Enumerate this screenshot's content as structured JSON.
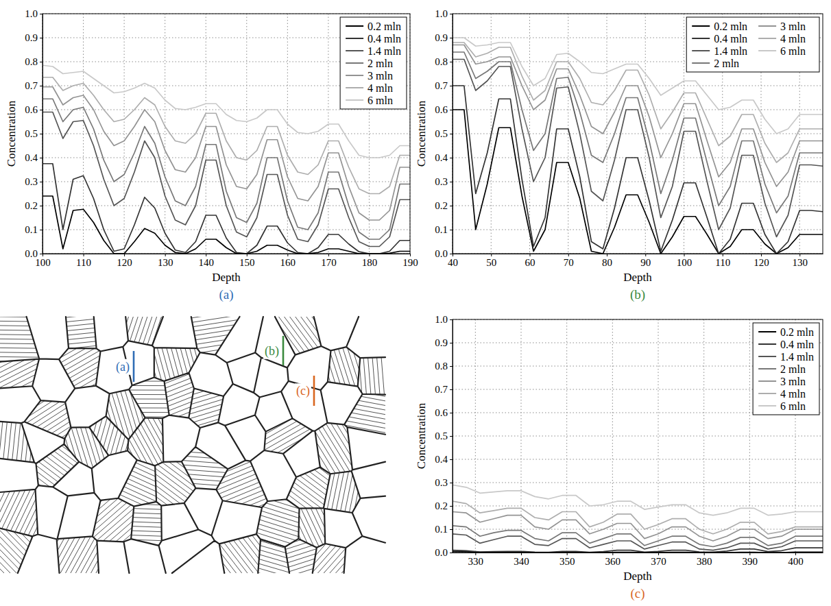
{
  "chart_data": [
    {
      "type": "line",
      "caption": "(a)",
      "x_label": "Depth",
      "y_label": "Concentration",
      "x": [
        100,
        102.5,
        105,
        107.5,
        110,
        112.5,
        115,
        117.5,
        120,
        122.5,
        125,
        127.5,
        130,
        132.5,
        135,
        137.5,
        140,
        142.5,
        145,
        147.5,
        150,
        152.5,
        155,
        157.5,
        160,
        162.5,
        165,
        167.5,
        170,
        172.5,
        175,
        177.5,
        180,
        182.5,
        185,
        187.5,
        190
      ],
      "xlim": [
        100,
        190
      ],
      "xticks": [
        100,
        110,
        120,
        130,
        140,
        150,
        160,
        170,
        180,
        190
      ],
      "ylim": [
        0,
        1
      ],
      "yticks": [
        {
          "value": 0,
          "label": "0.0"
        },
        0.1,
        0.2,
        0.3,
        0.4,
        0.5,
        0.6,
        0.7,
        0.8,
        0.9,
        {
          "value": 1,
          "label": "1.0"
        }
      ],
      "grid": true,
      "legend": "upper right",
      "series": [
        {
          "name": "0.2 mln",
          "color": "#000000",
          "values": [
            0.24,
            0.24,
            0.02,
            0.18,
            0.185,
            0.13,
            0.055,
            0,
            0,
            0.05,
            0.105,
            0.085,
            0.035,
            0.005,
            0,
            0.02,
            0.06,
            0.06,
            0.025,
            0,
            0,
            0.01,
            0.035,
            0.035,
            0.015,
            0,
            0,
            0.005,
            0.02,
            0.02,
            0.01,
            0,
            0,
            0,
            0.002,
            0.01,
            0.01
          ]
        },
        {
          "name": "0.4 mln",
          "color": "#333333",
          "values": [
            0.375,
            0.375,
            0.1,
            0.31,
            0.325,
            0.23,
            0.1,
            0.01,
            0.02,
            0.12,
            0.235,
            0.19,
            0.085,
            0.015,
            0.005,
            0.05,
            0.16,
            0.16,
            0.065,
            0.005,
            0,
            0.035,
            0.115,
            0.115,
            0.045,
            0.005,
            0,
            0.025,
            0.08,
            0.08,
            0.04,
            0.008,
            0,
            0,
            0.01,
            0.055,
            0.055
          ]
        },
        {
          "name": "1.4 mln",
          "color": "#555555",
          "values": [
            0.59,
            0.59,
            0.48,
            0.55,
            0.555,
            0.45,
            0.31,
            0.2,
            0.23,
            0.34,
            0.47,
            0.4,
            0.24,
            0.14,
            0.12,
            0.2,
            0.39,
            0.39,
            0.2,
            0.09,
            0.07,
            0.15,
            0.33,
            0.33,
            0.16,
            0.06,
            0.05,
            0.12,
            0.27,
            0.27,
            0.15,
            0.05,
            0.03,
            0.03,
            0.07,
            0.225,
            0.225
          ]
        },
        {
          "name": "2 mln",
          "color": "#777777",
          "values": [
            0.645,
            0.645,
            0.55,
            0.6,
            0.61,
            0.52,
            0.39,
            0.3,
            0.33,
            0.42,
            0.53,
            0.46,
            0.32,
            0.22,
            0.2,
            0.28,
            0.455,
            0.455,
            0.26,
            0.15,
            0.13,
            0.21,
            0.4,
            0.4,
            0.22,
            0.11,
            0.1,
            0.17,
            0.34,
            0.34,
            0.2,
            0.09,
            0.06,
            0.06,
            0.1,
            0.29,
            0.29
          ]
        },
        {
          "name": "3 mln",
          "color": "#939393",
          "values": [
            0.695,
            0.695,
            0.62,
            0.65,
            0.66,
            0.6,
            0.51,
            0.45,
            0.47,
            0.53,
            0.6,
            0.55,
            0.43,
            0.35,
            0.34,
            0.4,
            0.53,
            0.53,
            0.37,
            0.28,
            0.27,
            0.33,
            0.475,
            0.475,
            0.32,
            0.23,
            0.22,
            0.28,
            0.42,
            0.42,
            0.28,
            0.17,
            0.14,
            0.14,
            0.18,
            0.36,
            0.36
          ]
        },
        {
          "name": "4 mln",
          "color": "#adadad",
          "values": [
            0.735,
            0.735,
            0.68,
            0.7,
            0.71,
            0.66,
            0.6,
            0.55,
            0.56,
            0.6,
            0.65,
            0.62,
            0.53,
            0.47,
            0.46,
            0.5,
            0.585,
            0.585,
            0.47,
            0.4,
            0.39,
            0.43,
            0.53,
            0.53,
            0.41,
            0.34,
            0.33,
            0.37,
            0.47,
            0.47,
            0.36,
            0.27,
            0.25,
            0.25,
            0.28,
            0.41,
            0.41
          ]
        },
        {
          "name": "6 mln",
          "color": "#c8c8c8",
          "values": [
            0.785,
            0.78,
            0.75,
            0.755,
            0.76,
            0.73,
            0.7,
            0.67,
            0.675,
            0.69,
            0.71,
            0.69,
            0.64,
            0.605,
            0.6,
            0.61,
            0.625,
            0.625,
            0.58,
            0.555,
            0.55,
            0.565,
            0.6,
            0.6,
            0.54,
            0.505,
            0.5,
            0.51,
            0.54,
            0.54,
            0.47,
            0.41,
            0.4,
            0.4,
            0.41,
            0.45,
            0.45
          ]
        }
      ]
    },
    {
      "type": "line",
      "caption": "(b)",
      "x_label": "Depth",
      "y_label": "Concentration",
      "x": [
        40,
        43,
        46,
        49,
        52,
        55,
        58,
        61,
        64,
        67,
        70,
        73,
        76,
        79,
        82,
        85,
        88,
        91,
        94,
        97,
        100,
        103,
        106,
        109,
        112,
        115,
        118,
        121,
        124,
        127,
        130,
        133,
        136
      ],
      "xlim": [
        40,
        136
      ],
      "xticks": [
        40,
        50,
        60,
        70,
        80,
        90,
        100,
        110,
        120,
        130
      ],
      "ylim": [
        0,
        1
      ],
      "yticks": [
        {
          "value": 0,
          "label": "0.0"
        },
        0.1,
        0.2,
        0.3,
        0.4,
        0.5,
        0.6,
        0.7,
        0.8,
        0.9,
        {
          "value": 1,
          "label": "1.0"
        }
      ],
      "grid": true,
      "legend": "upper right",
      "series": [
        {
          "name": "0.2 mln",
          "color": "#000000",
          "values": [
            0.6,
            0.6,
            0.1,
            0.29,
            0.525,
            0.525,
            0.24,
            0.01,
            0.1,
            0.38,
            0.38,
            0.23,
            0.01,
            0,
            0.11,
            0.245,
            0.245,
            0.13,
            0,
            0.07,
            0.155,
            0.155,
            0.08,
            0,
            0.03,
            0.1,
            0.1,
            0.04,
            0,
            0.025,
            0.08,
            0.08,
            0.08
          ]
        },
        {
          "name": "0.4 mln",
          "color": "#333333",
          "values": [
            0.7,
            0.7,
            0.25,
            0.42,
            0.645,
            0.645,
            0.31,
            0.03,
            0.15,
            0.52,
            0.52,
            0.32,
            0.05,
            0.02,
            0.19,
            0.4,
            0.4,
            0.22,
            0.01,
            0.14,
            0.295,
            0.295,
            0.15,
            0,
            0.06,
            0.21,
            0.21,
            0.08,
            0,
            0.05,
            0.18,
            0.18,
            0.175
          ]
        },
        {
          "name": "1.4 mln",
          "color": "#555555",
          "values": [
            0.81,
            0.81,
            0.68,
            0.72,
            0.78,
            0.78,
            0.52,
            0.3,
            0.4,
            0.69,
            0.695,
            0.5,
            0.26,
            0.22,
            0.39,
            0.6,
            0.6,
            0.4,
            0.15,
            0.28,
            0.51,
            0.51,
            0.3,
            0.1,
            0.19,
            0.41,
            0.41,
            0.21,
            0.07,
            0.16,
            0.37,
            0.37,
            0.365
          ]
        },
        {
          "name": "2 mln",
          "color": "#777777",
          "values": [
            0.84,
            0.84,
            0.73,
            0.76,
            0.8,
            0.8,
            0.6,
            0.43,
            0.5,
            0.73,
            0.735,
            0.59,
            0.41,
            0.38,
            0.5,
            0.65,
            0.65,
            0.47,
            0.25,
            0.39,
            0.565,
            0.565,
            0.38,
            0.2,
            0.28,
            0.47,
            0.47,
            0.29,
            0.17,
            0.24,
            0.42,
            0.42,
            0.42
          ]
        },
        {
          "name": "3 mln",
          "color": "#939393",
          "values": [
            0.87,
            0.87,
            0.79,
            0.8,
            0.82,
            0.82,
            0.7,
            0.6,
            0.64,
            0.77,
            0.77,
            0.66,
            0.53,
            0.5,
            0.59,
            0.7,
            0.7,
            0.57,
            0.4,
            0.5,
            0.625,
            0.625,
            0.47,
            0.32,
            0.38,
            0.52,
            0.52,
            0.38,
            0.28,
            0.34,
            0.47,
            0.47,
            0.47
          ]
        },
        {
          "name": "4 mln",
          "color": "#adadad",
          "values": [
            0.88,
            0.88,
            0.82,
            0.835,
            0.86,
            0.86,
            0.74,
            0.64,
            0.68,
            0.8,
            0.8,
            0.73,
            0.63,
            0.62,
            0.68,
            0.765,
            0.765,
            0.66,
            0.52,
            0.59,
            0.67,
            0.67,
            0.56,
            0.45,
            0.49,
            0.58,
            0.58,
            0.46,
            0.38,
            0.42,
            0.52,
            0.52,
            0.52
          ]
        },
        {
          "name": "6 mln",
          "color": "#c8c8c8",
          "values": [
            0.9,
            0.9,
            0.865,
            0.87,
            0.88,
            0.88,
            0.78,
            0.7,
            0.73,
            0.83,
            0.835,
            0.8,
            0.755,
            0.75,
            0.77,
            0.79,
            0.79,
            0.73,
            0.66,
            0.69,
            0.72,
            0.72,
            0.66,
            0.6,
            0.61,
            0.64,
            0.64,
            0.56,
            0.5,
            0.52,
            0.58,
            0.58,
            0.58
          ]
        }
      ]
    },
    {
      "type": "line",
      "caption": "(c)",
      "x_label": "Depth",
      "y_label": "Concentration",
      "x": [
        325,
        328,
        331,
        334,
        337,
        340,
        343,
        346,
        349,
        352,
        355,
        358,
        361,
        364,
        367,
        370,
        373,
        376,
        379,
        382,
        385,
        388,
        391,
        394,
        397,
        400,
        403,
        406
      ],
      "xlim": [
        325,
        406
      ],
      "xticks": [
        330,
        340,
        350,
        360,
        370,
        380,
        390,
        400
      ],
      "ylim": [
        0,
        1
      ],
      "yticks": [
        {
          "value": 0,
          "label": "0.0"
        },
        0.1,
        0.2,
        0.3,
        0.4,
        0.5,
        0.6,
        0.7,
        0.8,
        0.9,
        {
          "value": 1,
          "label": "1.0"
        }
      ],
      "grid": true,
      "legend": "upper right",
      "series": [
        {
          "name": "0.2 mln",
          "color": "#000000",
          "values": [
            0.005,
            0.004,
            0.001,
            0.001,
            0.002,
            0.002,
            0,
            0,
            0.001,
            0.001,
            0,
            0,
            0.001,
            0.001,
            0,
            0,
            0.001,
            0.001,
            0,
            0,
            0,
            0.001,
            0.001,
            0,
            0,
            0.002,
            0.002,
            0.002
          ]
        },
        {
          "name": "0.4 mln",
          "color": "#333333",
          "values": [
            0.01,
            0.008,
            0.003,
            0.004,
            0.005,
            0.005,
            0.002,
            0.001,
            0.005,
            0.005,
            0.001,
            0.004,
            0.01,
            0.01,
            0.002,
            0.005,
            0.01,
            0.01,
            0.003,
            0.002,
            0.006,
            0.015,
            0.015,
            0.004,
            0.008,
            0.02,
            0.02,
            0.02
          ]
        },
        {
          "name": "1.4 mln",
          "color": "#555555",
          "values": [
            0.08,
            0.075,
            0.04,
            0.055,
            0.07,
            0.07,
            0.035,
            0.03,
            0.06,
            0.06,
            0.02,
            0.035,
            0.05,
            0.05,
            0.015,
            0.03,
            0.045,
            0.045,
            0.015,
            0.01,
            0.02,
            0.04,
            0.04,
            0.015,
            0.025,
            0.05,
            0.05,
            0.05
          ]
        },
        {
          "name": "2 mln",
          "color": "#777777",
          "values": [
            0.115,
            0.11,
            0.07,
            0.085,
            0.095,
            0.095,
            0.06,
            0.05,
            0.085,
            0.085,
            0.04,
            0.06,
            0.08,
            0.08,
            0.03,
            0.05,
            0.07,
            0.07,
            0.035,
            0.025,
            0.04,
            0.065,
            0.065,
            0.03,
            0.04,
            0.07,
            0.07,
            0.07
          ]
        },
        {
          "name": "3 mln",
          "color": "#939393",
          "values": [
            0.175,
            0.17,
            0.13,
            0.145,
            0.16,
            0.16,
            0.11,
            0.1,
            0.14,
            0.14,
            0.08,
            0.1,
            0.125,
            0.125,
            0.06,
            0.08,
            0.11,
            0.11,
            0.07,
            0.05,
            0.07,
            0.1,
            0.1,
            0.06,
            0.07,
            0.1,
            0.1,
            0.1
          ]
        },
        {
          "name": "4 mln",
          "color": "#adadad",
          "values": [
            0.22,
            0.21,
            0.17,
            0.18,
            0.19,
            0.19,
            0.15,
            0.14,
            0.175,
            0.175,
            0.11,
            0.13,
            0.165,
            0.165,
            0.1,
            0.12,
            0.145,
            0.145,
            0.1,
            0.08,
            0.1,
            0.13,
            0.13,
            0.08,
            0.09,
            0.11,
            0.11,
            0.11
          ]
        },
        {
          "name": "6 mln",
          "color": "#c8c8c8",
          "values": [
            0.29,
            0.28,
            0.255,
            0.26,
            0.265,
            0.265,
            0.24,
            0.23,
            0.245,
            0.245,
            0.2,
            0.205,
            0.22,
            0.22,
            0.185,
            0.195,
            0.205,
            0.205,
            0.17,
            0.16,
            0.17,
            0.19,
            0.19,
            0.16,
            0.165,
            0.175,
            0.175,
            0.175
          ]
        }
      ]
    }
  ],
  "microstructure": {
    "markers": [
      {
        "label": "(a)",
        "color": "#2f6db5"
      },
      {
        "label": "(b)",
        "color": "#3a8a3e"
      },
      {
        "label": "(c)",
        "color": "#d9661f"
      }
    ]
  }
}
